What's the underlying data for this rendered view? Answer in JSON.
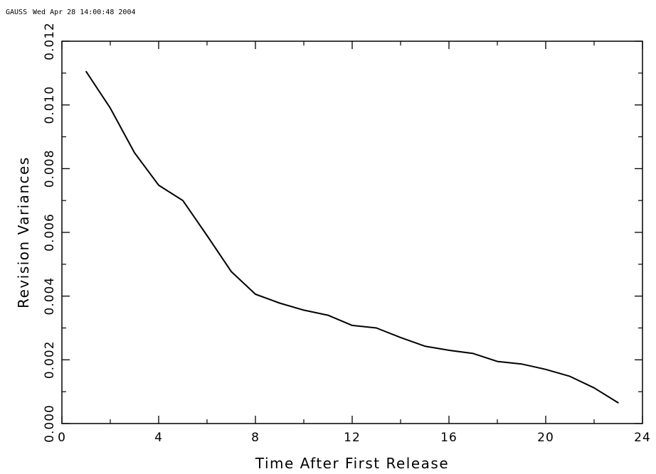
{
  "header": {
    "program": "GAUSS",
    "timestamp": "Wed Apr 28 14:00:48 2004"
  },
  "chart_data": {
    "type": "line",
    "title": "",
    "xlabel": "Time After First Release",
    "ylabel": "Revision Variances",
    "xlim": [
      0,
      24
    ],
    "ylim": [
      0.0,
      0.012
    ],
    "x_ticks": [
      0,
      4,
      8,
      12,
      16,
      20,
      24
    ],
    "x_tick_labels": [
      "0",
      "4",
      "8",
      "12",
      "16",
      "20",
      "24"
    ],
    "x_minor_step": 2,
    "y_ticks": [
      0.0,
      0.002,
      0.004,
      0.006,
      0.008,
      0.01,
      0.012
    ],
    "y_tick_labels": [
      "0.000",
      "0.002",
      "0.004",
      "0.006",
      "0.008",
      "0.010",
      "0.012"
    ],
    "y_minor_step": 0.001,
    "grid": false,
    "line_color": "#000000",
    "series": [
      {
        "x": [
          1,
          2,
          3,
          4,
          5,
          6,
          7,
          8,
          9,
          10,
          11,
          12,
          13,
          14,
          15,
          16,
          17,
          18,
          19,
          20,
          21,
          22,
          23
        ],
        "values": [
          0.01105,
          0.0099,
          0.0085,
          0.00748,
          0.007,
          0.0059,
          0.00477,
          0.00406,
          0.00378,
          0.00356,
          0.0034,
          0.00308,
          0.003,
          0.0027,
          0.00243,
          0.0023,
          0.0022,
          0.00195,
          0.00187,
          0.0017,
          0.00148,
          0.00112,
          0.00065
        ]
      }
    ]
  }
}
